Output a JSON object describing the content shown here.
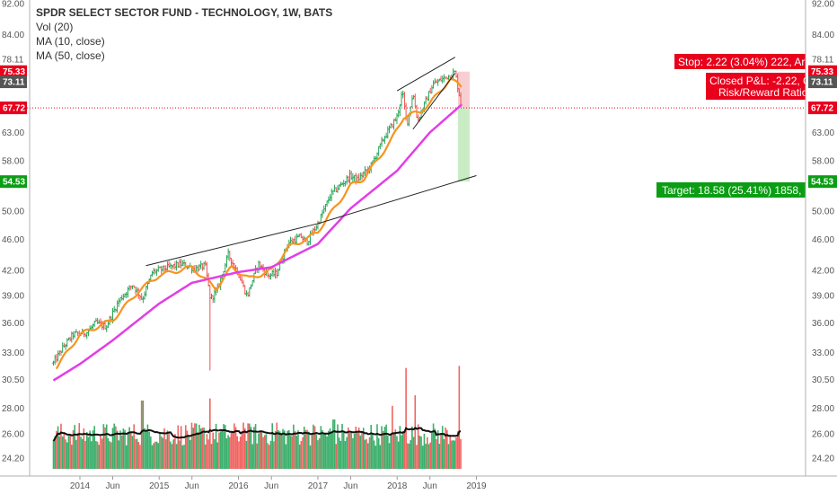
{
  "legend": {
    "title": "SPDR SELECT SECTOR FUND - TECHNOLOGY, 1W, BATS",
    "vol": "Vol (20)",
    "ma10": "MA (10, close)",
    "ma50": "MA (50, close)"
  },
  "colors": {
    "up": "#26a65b",
    "down": "#ef5350",
    "ma10": "#f7941d",
    "ma50": "#e23ee6",
    "vol_ma": "#111111",
    "stop_badge": "#e8001c",
    "target_badge": "#0b9e14",
    "current_badge": "#555555",
    "target_zone": "#c9ecc4",
    "stop_zone": "#f4b9bf",
    "trendline": "#222222"
  },
  "annotations": {
    "stop": "Stop: 2.22 (3.04%) 222, Ar",
    "closed_pl": "Closed P&L: -2.22, Q",
    "risk_reward": "Risk/Reward Ratio:",
    "target": "Target: 18.58 (25.41%) 1858, "
  },
  "price_badges": {
    "stop": "75.33",
    "current": "73.11",
    "entry": "67.72",
    "target": "54.53"
  },
  "chart_data": {
    "type": "candlestick",
    "title": "SPDR SELECT SECTOR FUND - TECHNOLOGY, 1W, BATS",
    "xlabel": "",
    "ylabel": "",
    "log_scale": true,
    "grid": false,
    "ylim": [
      24.2,
      92.0
    ],
    "y_ticks": [
      "92.00",
      "84.00",
      "78.11",
      "67.72",
      "63.00",
      "58.00",
      "54.53",
      "50.00",
      "46.00",
      "42.00",
      "39.00",
      "36.00",
      "33.00",
      "30.50",
      "28.00",
      "26.00",
      "24.20"
    ],
    "y_tick_values": [
      92.0,
      84.0,
      78.11,
      67.72,
      63.0,
      58.0,
      54.53,
      50.0,
      46.0,
      42.0,
      39.0,
      36.0,
      33.0,
      30.5,
      28.0,
      26.0,
      24.2
    ],
    "x_ticks": [
      "2014",
      "Jun",
      "2015",
      "Jun",
      "2016",
      "Jun",
      "2017",
      "Jun",
      "2018",
      "Jun",
      "2019"
    ],
    "x_tick_dates": [
      "2014-01-01",
      "2014-06-01",
      "2015-01-01",
      "2015-06-01",
      "2016-01-01",
      "2016-06-01",
      "2017-01-01",
      "2017-06-01",
      "2018-01-01",
      "2018-06-01",
      "2019-01-01"
    ],
    "price_path": [
      {
        "date": "2013-09-01",
        "close": 32.0
      },
      {
        "date": "2013-10-15",
        "close": 33.5
      },
      {
        "date": "2013-12-01",
        "close": 34.8
      },
      {
        "date": "2014-02-01",
        "close": 35.0
      },
      {
        "date": "2014-03-15",
        "close": 36.0
      },
      {
        "date": "2014-05-01",
        "close": 35.6
      },
      {
        "date": "2014-07-01",
        "close": 38.5
      },
      {
        "date": "2014-09-01",
        "close": 40.3
      },
      {
        "date": "2014-10-15",
        "close": 38.6
      },
      {
        "date": "2014-12-01",
        "close": 41.8
      },
      {
        "date": "2015-02-01",
        "close": 42.3
      },
      {
        "date": "2015-04-15",
        "close": 42.8
      },
      {
        "date": "2015-06-15",
        "close": 42.2
      },
      {
        "date": "2015-08-01",
        "close": 42.6
      },
      {
        "date": "2015-08-25",
        "close": 38.6
      },
      {
        "date": "2015-09-25",
        "close": 39.6
      },
      {
        "date": "2015-11-15",
        "close": 44.0
      },
      {
        "date": "2016-01-01",
        "close": 41.6
      },
      {
        "date": "2016-02-10",
        "close": 38.9
      },
      {
        "date": "2016-04-01",
        "close": 42.9
      },
      {
        "date": "2016-05-15",
        "close": 41.4
      },
      {
        "date": "2016-06-25",
        "close": 41.6
      },
      {
        "date": "2016-08-15",
        "close": 45.5
      },
      {
        "date": "2016-10-15",
        "close": 46.4
      },
      {
        "date": "2016-11-10",
        "close": 45.6
      },
      {
        "date": "2017-01-01",
        "close": 48.2
      },
      {
        "date": "2017-03-01",
        "close": 52.5
      },
      {
        "date": "2017-06-01",
        "close": 55.5
      },
      {
        "date": "2017-07-01",
        "close": 54.8
      },
      {
        "date": "2017-09-01",
        "close": 57.0
      },
      {
        "date": "2017-11-01",
        "close": 62.0
      },
      {
        "date": "2018-01-01",
        "close": 66.0
      },
      {
        "date": "2018-01-25",
        "close": 71.0
      },
      {
        "date": "2018-02-15",
        "close": 64.5
      },
      {
        "date": "2018-03-15",
        "close": 70.8
      },
      {
        "date": "2018-04-05",
        "close": 65.2
      },
      {
        "date": "2018-05-15",
        "close": 69.3
      },
      {
        "date": "2018-06-15",
        "close": 72.6
      },
      {
        "date": "2018-08-01",
        "close": 73.8
      },
      {
        "date": "2018-09-25",
        "close": 75.2
      },
      {
        "date": "2018-10-15",
        "close": 70.2
      },
      {
        "date": "2018-10-26",
        "close": 67.4
      }
    ],
    "series": [
      {
        "name": "MA (10, close)",
        "points": [
          {
            "date": "2013-09-15",
            "value": 31.6
          },
          {
            "date": "2014-01-01",
            "value": 34.8
          },
          {
            "date": "2014-06-01",
            "value": 36.3
          },
          {
            "date": "2014-10-01",
            "value": 39.6
          },
          {
            "date": "2015-01-01",
            "value": 41.4
          },
          {
            "date": "2015-06-01",
            "value": 42.4
          },
          {
            "date": "2015-09-20",
            "value": 39.8
          },
          {
            "date": "2015-12-01",
            "value": 42.4
          },
          {
            "date": "2016-02-20",
            "value": 41.0
          },
          {
            "date": "2016-04-01",
            "value": 41.4
          },
          {
            "date": "2016-06-01",
            "value": 42.0
          },
          {
            "date": "2016-08-20",
            "value": 45.0
          },
          {
            "date": "2016-11-20",
            "value": 46.2
          },
          {
            "date": "2017-01-01",
            "value": 47.1
          },
          {
            "date": "2017-06-01",
            "value": 53.9
          },
          {
            "date": "2017-08-01",
            "value": 55.0
          },
          {
            "date": "2017-12-01",
            "value": 61.3
          },
          {
            "date": "2018-02-01",
            "value": 66.0
          },
          {
            "date": "2018-04-15",
            "value": 66.9
          },
          {
            "date": "2018-06-01",
            "value": 68.6
          },
          {
            "date": "2018-09-01",
            "value": 73.6
          },
          {
            "date": "2018-10-26",
            "value": 72.2
          }
        ]
      },
      {
        "name": "MA (50, close)",
        "points": [
          {
            "date": "2013-09-01",
            "value": 30.4
          },
          {
            "date": "2014-01-01",
            "value": 31.9
          },
          {
            "date": "2014-06-01",
            "value": 34.2
          },
          {
            "date": "2015-01-01",
            "value": 38.1
          },
          {
            "date": "2015-06-01",
            "value": 40.5
          },
          {
            "date": "2016-01-01",
            "value": 41.8
          },
          {
            "date": "2016-06-01",
            "value": 42.4
          },
          {
            "date": "2017-01-01",
            "value": 45.4
          },
          {
            "date": "2017-06-01",
            "value": 50.4
          },
          {
            "date": "2018-01-01",
            "value": 56.3
          },
          {
            "date": "2018-06-01",
            "value": 63.0
          },
          {
            "date": "2018-10-26",
            "value": 68.4
          }
        ]
      }
    ],
    "trendlines": [
      {
        "from": {
          "date": "2014-11-01",
          "value": 42.6
        },
        "to": {
          "date": "2017-01-01",
          "value": 48.2
        }
      },
      {
        "from": {
          "date": "2017-01-01",
          "value": 48.2
        },
        "to": {
          "date": "2019-01-01",
          "value": 55.5
        }
      },
      {
        "from": {
          "date": "2018-01-01",
          "value": 71.2
        },
        "to": {
          "date": "2018-09-25",
          "value": 78.6
        }
      },
      {
        "from": {
          "date": "2018-03-15",
          "value": 63.6
        },
        "to": {
          "date": "2018-09-25",
          "value": 75.0
        }
      }
    ],
    "position": {
      "entry": 67.72,
      "stop": 75.33,
      "target": 54.53,
      "current": 73.11,
      "start_date": "2018-10-08",
      "end_date": "2018-12-01"
    },
    "volume": {
      "label": "Vol (20)",
      "spikes": [
        {
          "date": "2014-10-15",
          "level": 0.65
        },
        {
          "date": "2015-08-25",
          "level": 0.67
        },
        {
          "date": "2016-01-25",
          "level": 0.44
        },
        {
          "date": "2016-02-25",
          "level": 0.4
        },
        {
          "date": "2016-06-25",
          "level": 0.44
        },
        {
          "date": "2016-11-10",
          "level": 0.37
        },
        {
          "date": "2017-03-15",
          "level": 0.47
        },
        {
          "date": "2017-12-10",
          "level": 0.6
        },
        {
          "date": "2018-02-10",
          "level": 0.96
        },
        {
          "date": "2018-03-25",
          "level": 0.7
        },
        {
          "date": "2018-10-12",
          "level": 0.98
        },
        {
          "date": "2018-10-26",
          "level": 0.6
        }
      ]
    }
  }
}
